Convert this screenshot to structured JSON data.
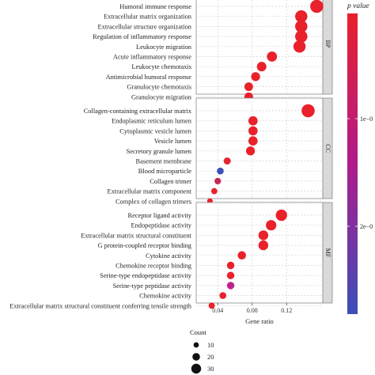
{
  "chart_data": {
    "type": "scatter",
    "title": "",
    "xlabel": "Gene ratio",
    "ylabel": "",
    "xlim": [
      0.015,
      0.162
    ],
    "x_ticks": [
      0.04,
      0.08,
      0.12
    ],
    "x_tick_labels": [
      "0.04",
      "0.08",
      "0.12"
    ],
    "grid": true,
    "size_by": "Count",
    "color_by": "p value",
    "panels": [
      {
        "label": "BP",
        "points": [
          {
            "term": "Humoral immune response",
            "x": 0.155,
            "count": 30,
            "color": "#e8212b"
          },
          {
            "term": "Extracellular matrix organization",
            "x": 0.137,
            "count": 27,
            "color": "#e8212b"
          },
          {
            "term": "Extracellular structure organization",
            "x": 0.137,
            "count": 27,
            "color": "#e8212b"
          },
          {
            "term": "Regulation of inflammatory response",
            "x": 0.137,
            "count": 27,
            "color": "#e8212b"
          },
          {
            "term": "Leukocyte migration",
            "x": 0.135,
            "count": 27,
            "color": "#e8212b"
          },
          {
            "term": "Acute inflammatory response",
            "x": 0.103,
            "count": 20,
            "color": "#e8212b"
          },
          {
            "term": "Leukocyte chemotaxis",
            "x": 0.091,
            "count": 18,
            "color": "#e8212b"
          },
          {
            "term": "Antimicrobial humoral response",
            "x": 0.084,
            "count": 16,
            "color": "#e8212b"
          },
          {
            "term": "Granulocyte chemotaxis",
            "x": 0.076,
            "count": 15,
            "color": "#e8212b"
          },
          {
            "term": "Granulocyte migration",
            "x": 0.076,
            "count": 15,
            "color": "#e8212b"
          }
        ]
      },
      {
        "label": "CC",
        "points": [
          {
            "term": "Collagen-containing extracellular matrix",
            "x": 0.145,
            "count": 30,
            "color": "#e8212b"
          },
          {
            "term": "Endoplasmic reticulum lumen",
            "x": 0.081,
            "count": 17,
            "color": "#e8212b"
          },
          {
            "term": "Cytoplasmic vesicle lumen",
            "x": 0.081,
            "count": 17,
            "color": "#e8212b"
          },
          {
            "term": "Vesicle lumen",
            "x": 0.081,
            "count": 17,
            "color": "#e8212b"
          },
          {
            "term": "Secretory granule lumen",
            "x": 0.078,
            "count": 16,
            "color": "#e8212b"
          },
          {
            "term": "Basement membrane",
            "x": 0.051,
            "count": 10,
            "color": "#e32630"
          },
          {
            "term": "Blood microparticle",
            "x": 0.043,
            "count": 9,
            "color": "#3b4fb8"
          },
          {
            "term": "Collagen trimer",
            "x": 0.04,
            "count": 8,
            "color": "#c62a52"
          },
          {
            "term": "Extracellular matrix component",
            "x": 0.036,
            "count": 7,
            "color": "#e8212b"
          },
          {
            "term": "Complex of collagen trimers",
            "x": 0.031,
            "count": 5,
            "color": "#e8212b"
          }
        ]
      },
      {
        "label": "MF",
        "points": [
          {
            "term": "Receptor ligand activity",
            "x": 0.114,
            "count": 24,
            "color": "#e8212b"
          },
          {
            "term": "Endopeptidase activity",
            "x": 0.102,
            "count": 21,
            "color": "#e8212b"
          },
          {
            "term": "Extracellular matrix structural constituent",
            "x": 0.093,
            "count": 19,
            "color": "#e8212b"
          },
          {
            "term": "G protein-coupled receptor binding",
            "x": 0.093,
            "count": 19,
            "color": "#e8212b"
          },
          {
            "term": "Cytokine activity",
            "x": 0.068,
            "count": 14,
            "color": "#e8212b"
          },
          {
            "term": "Chemokine receptor binding",
            "x": 0.055,
            "count": 11,
            "color": "#e8212b"
          },
          {
            "term": "Serine-type endopeptidase activity",
            "x": 0.055,
            "count": 11,
            "color": "#e8212b"
          },
          {
            "term": "Serine-type peptidase activity",
            "x": 0.055,
            "count": 11,
            "color": "#c1218a"
          },
          {
            "term": "Chemokine activity",
            "x": 0.046,
            "count": 9,
            "color": "#e8212b"
          },
          {
            "term": "Extracellular matrix structural constituent conferring tensile strength",
            "x": 0.033,
            "count": 7,
            "color": "#e8212b"
          }
        ]
      }
    ],
    "color_legend": {
      "title": "p value",
      "tick_labels": [
        "1e−0",
        "2e−0"
      ],
      "gradient": [
        "#e8212b",
        "#b01a8c",
        "#3b4fb8"
      ]
    },
    "size_legend": {
      "title": "Count",
      "entries": [
        {
          "label": "10",
          "count": 10
        },
        {
          "label": "20",
          "count": 20
        },
        {
          "label": "30",
          "count": 30
        }
      ]
    }
  }
}
